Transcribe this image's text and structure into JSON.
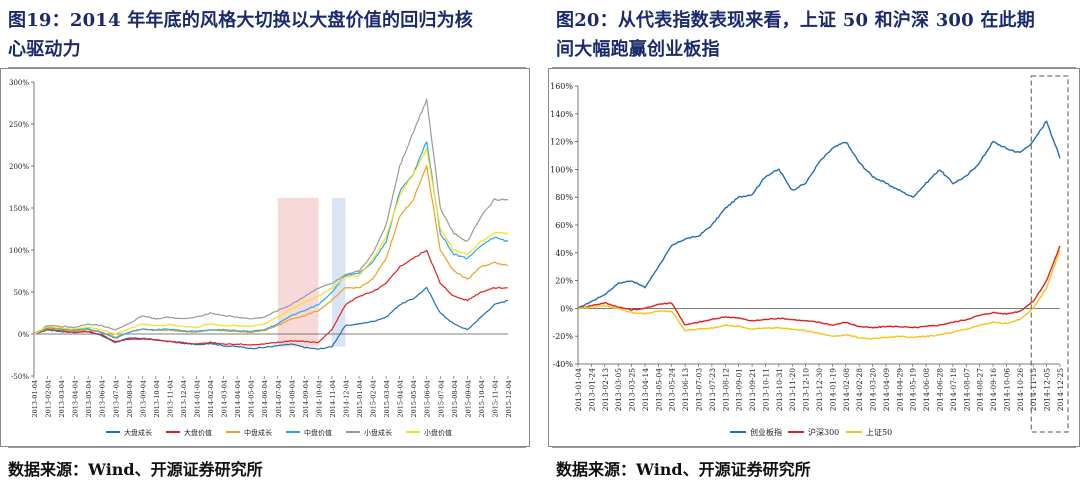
{
  "left": {
    "title": "图19：2014年年底的风格大切换以大盘价值的回归为核心驱动力",
    "title_line1": "图19：2014 年年底的风格大切换以大盘价值的回归为核",
    "title_line2": "心驱动力",
    "source": "数据来源：Wind、开源证券研究所"
  },
  "right": {
    "title": "图20：从代表指数表现来看，上证50和沪深300在此期间大幅跑赢创业板指",
    "title_line1": "图20：从代表指数表现来看，上证 50 和沪深 300 在此期",
    "title_line2": "间大幅跑赢创业板指",
    "source": "数据来源：Wind、开源证券研究所"
  },
  "chart_data": [
    {
      "type": "line",
      "title": "",
      "ylim": [
        -0.5,
        3.0
      ],
      "y_ticks": [
        "300%",
        "250%",
        "200%",
        "150%",
        "100%",
        "50%",
        "0%",
        "-50%"
      ],
      "y_tick_values": [
        3.0,
        2.5,
        2.0,
        1.5,
        1.0,
        0.5,
        0.0,
        -0.5
      ],
      "x": [
        "2013-01-04",
        "2013-02-04",
        "2013-03-04",
        "2013-04-04",
        "2013-05-04",
        "2013-06-04",
        "2013-07-04",
        "2013-08-04",
        "2013-09-04",
        "2013-10-04",
        "2013-11-04",
        "2013-12-04",
        "2014-01-04",
        "2014-02-04",
        "2014-03-04",
        "2014-04-04",
        "2014-05-04",
        "2014-06-04",
        "2014-07-04",
        "2014-08-04",
        "2014-09-04",
        "2014-10-04",
        "2014-11-04",
        "2014-12-04",
        "2015-01-04",
        "2015-02-04",
        "2015-03-04",
        "2015-04-04",
        "2015-05-04",
        "2015-06-04",
        "2015-07-04",
        "2015-08-04",
        "2015-09-04",
        "2015-10-04",
        "2015-11-04",
        "2015-12-04"
      ],
      "highlight_ranges": [
        {
          "from": "2014-07-04",
          "to": "2014-10-04",
          "color": "#f7d2d2"
        },
        {
          "from": "2014-11-04",
          "to": "2014-12-04",
          "color": "#d2e1f3"
        }
      ],
      "legend": "bottom",
      "series": [
        {
          "name": "大盘成长",
          "color": "#1f6fb8",
          "values": [
            0,
            0.05,
            0.03,
            0.02,
            0.03,
            -0.02,
            -0.1,
            -0.05,
            -0.05,
            -0.07,
            -0.09,
            -0.1,
            -0.13,
            -0.11,
            -0.14,
            -0.15,
            -0.17,
            -0.16,
            -0.14,
            -0.12,
            -0.16,
            -0.18,
            -0.15,
            0.1,
            0.12,
            0.15,
            0.2,
            0.35,
            0.42,
            0.55,
            0.25,
            0.12,
            0.05,
            0.2,
            0.35,
            0.4
          ]
        },
        {
          "name": "大盘价值",
          "color": "#e02020",
          "values": [
            0,
            0.06,
            0.04,
            0.02,
            0.03,
            -0.01,
            -0.09,
            -0.06,
            -0.06,
            -0.07,
            -0.09,
            -0.11,
            -0.12,
            -0.1,
            -0.12,
            -0.12,
            -0.13,
            -0.12,
            -0.1,
            -0.08,
            -0.09,
            -0.1,
            0.05,
            0.35,
            0.45,
            0.5,
            0.6,
            0.8,
            0.9,
            1.0,
            0.6,
            0.45,
            0.4,
            0.5,
            0.55,
            0.55
          ]
        },
        {
          "name": "中盘成长",
          "color": "#f0a020",
          "values": [
            0,
            0.07,
            0.05,
            0.04,
            0.05,
            0.02,
            -0.04,
            0.02,
            0.06,
            0.04,
            0.05,
            0.03,
            0.02,
            0.05,
            0.04,
            0.03,
            0.02,
            0.04,
            0.1,
            0.18,
            0.22,
            0.28,
            0.4,
            0.55,
            0.55,
            0.65,
            0.9,
            1.4,
            1.6,
            2.0,
            1.0,
            0.75,
            0.65,
            0.8,
            0.85,
            0.82
          ]
        },
        {
          "name": "中盘价值",
          "color": "#2aa8e0",
          "values": [
            0,
            0.08,
            0.06,
            0.05,
            0.06,
            0.02,
            -0.05,
            0.02,
            0.06,
            0.05,
            0.06,
            0.04,
            0.03,
            0.05,
            0.05,
            0.04,
            0.03,
            0.05,
            0.12,
            0.22,
            0.28,
            0.35,
            0.5,
            0.7,
            0.72,
            0.85,
            1.1,
            1.7,
            1.9,
            2.3,
            1.2,
            0.95,
            0.9,
            1.05,
            1.15,
            1.1
          ]
        },
        {
          "name": "小盘成长",
          "color": "#9a9a9a",
          "values": [
            0,
            0.1,
            0.09,
            0.08,
            0.12,
            0.1,
            0.05,
            0.12,
            0.22,
            0.18,
            0.2,
            0.18,
            0.2,
            0.25,
            0.22,
            0.2,
            0.18,
            0.2,
            0.28,
            0.35,
            0.45,
            0.55,
            0.6,
            0.7,
            0.75,
            0.95,
            1.3,
            2.0,
            2.4,
            2.8,
            1.5,
            1.2,
            1.1,
            1.4,
            1.6,
            1.6
          ]
        },
        {
          "name": "小盘价值",
          "color": "#f5e020",
          "values": [
            0,
            0.09,
            0.07,
            0.06,
            0.08,
            0.05,
            0.0,
            0.06,
            0.12,
            0.1,
            0.11,
            0.09,
            0.08,
            0.12,
            0.1,
            0.1,
            0.09,
            0.12,
            0.2,
            0.3,
            0.38,
            0.45,
            0.55,
            0.68,
            0.7,
            0.88,
            1.15,
            1.65,
            1.9,
            2.2,
            1.25,
            1.0,
            0.95,
            1.1,
            1.2,
            1.2
          ]
        }
      ]
    },
    {
      "type": "line",
      "title": "",
      "ylim": [
        -0.4,
        1.6
      ],
      "y_ticks": [
        "160%",
        "140%",
        "120%",
        "100%",
        "80%",
        "60%",
        "40%",
        "20%",
        "0%",
        "-20%",
        "-40%"
      ],
      "y_tick_values": [
        1.6,
        1.4,
        1.2,
        1.0,
        0.8,
        0.6,
        0.4,
        0.2,
        0.0,
        -0.2,
        -0.4
      ],
      "x": [
        "2013-01-04",
        "2013-01-24",
        "2013-02-13",
        "2013-03-05",
        "2013-03-25",
        "2013-04-14",
        "2013-05-04",
        "2013-05-24",
        "2013-06-13",
        "2013-07-03",
        "2013-07-23",
        "2013-08-12",
        "2013-09-01",
        "2013-09-21",
        "2013-10-11",
        "2013-10-31",
        "2013-11-20",
        "2013-12-10",
        "2013-12-30",
        "2014-01-19",
        "2014-02-08",
        "2014-02-28",
        "2014-03-20",
        "2014-04-09",
        "2014-04-29",
        "2014-05-19",
        "2014-06-08",
        "2014-06-28",
        "2014-07-18",
        "2014-08-07",
        "2014-08-27",
        "2014-09-16",
        "2014-10-06",
        "2014-10-26",
        "2014-11-15",
        "2014-12-05",
        "2014-12-25"
      ],
      "highlight_box": {
        "from": "2014-11-15",
        "to": "2014-12-25"
      },
      "legend": "bottom",
      "series": [
        {
          "name": "创业板指",
          "color": "#1f6fb8",
          "values": [
            0,
            0.05,
            0.1,
            0.18,
            0.2,
            0.15,
            0.3,
            0.45,
            0.5,
            0.52,
            0.6,
            0.72,
            0.8,
            0.82,
            0.95,
            1.0,
            0.85,
            0.9,
            1.05,
            1.15,
            1.2,
            1.05,
            0.95,
            0.9,
            0.85,
            0.8,
            0.9,
            1.0,
            0.9,
            0.95,
            1.05,
            1.2,
            1.15,
            1.12,
            1.2,
            1.35,
            1.08
          ]
        },
        {
          "name": "沪深300",
          "color": "#e02020",
          "values": [
            0,
            0.02,
            0.04,
            0.01,
            -0.01,
            0.0,
            0.03,
            0.04,
            -0.12,
            -0.1,
            -0.08,
            -0.06,
            -0.07,
            -0.09,
            -0.08,
            -0.07,
            -0.08,
            -0.09,
            -0.1,
            -0.12,
            -0.1,
            -0.13,
            -0.14,
            -0.13,
            -0.13,
            -0.14,
            -0.13,
            -0.12,
            -0.1,
            -0.08,
            -0.05,
            -0.03,
            -0.04,
            -0.02,
            0.05,
            0.2,
            0.45
          ]
        },
        {
          "name": "上证50",
          "color": "#f5c518",
          "values": [
            0,
            0.01,
            0.02,
            0.0,
            -0.03,
            -0.04,
            -0.02,
            -0.02,
            -0.16,
            -0.15,
            -0.14,
            -0.12,
            -0.13,
            -0.15,
            -0.14,
            -0.14,
            -0.15,
            -0.16,
            -0.18,
            -0.2,
            -0.19,
            -0.21,
            -0.22,
            -0.21,
            -0.2,
            -0.21,
            -0.2,
            -0.19,
            -0.17,
            -0.15,
            -0.12,
            -0.1,
            -0.11,
            -0.08,
            0.0,
            0.15,
            0.42
          ]
        }
      ]
    }
  ]
}
